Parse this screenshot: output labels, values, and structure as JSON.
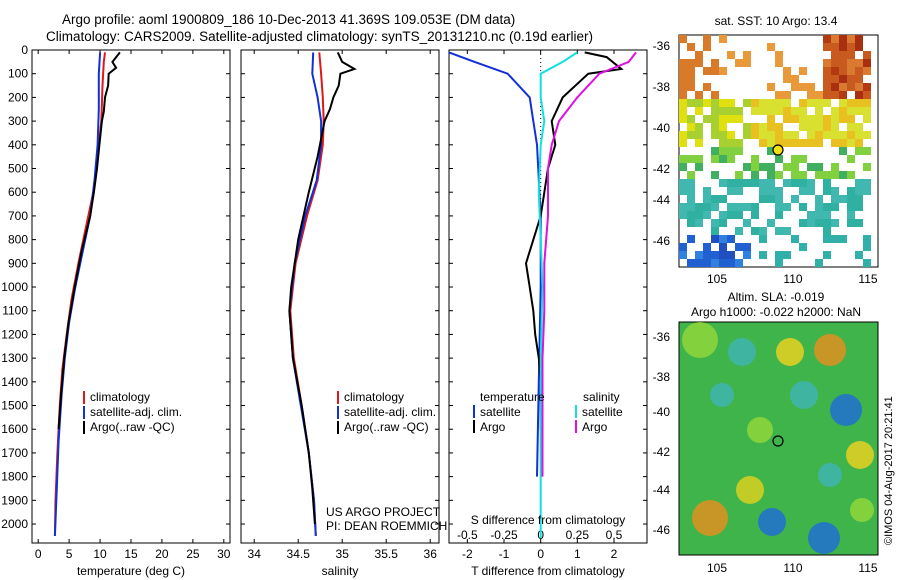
{
  "header": {
    "line1": "Argo profile: aoml 1900809_186 10-Dec-2013 41.369S 109.053E (DM data)",
    "line2": "Climatology: CARS2009. Satellite-adjusted climatology: synTS_20131210.nc (0.19d earlier)"
  },
  "chart_data": [
    {
      "type": "line",
      "name": "temperature-profile",
      "xlabel": "temperature (deg C)",
      "xlim": [
        -1,
        31
      ],
      "ylim": [
        0,
        2080
      ],
      "y_reversed": true,
      "xticks": [
        0,
        5,
        10,
        15,
        20,
        25,
        30
      ],
      "yticks": [
        0,
        100,
        200,
        300,
        400,
        500,
        600,
        700,
        800,
        900,
        1000,
        1100,
        1200,
        1300,
        1400,
        1500,
        1600,
        1700,
        1800,
        1900,
        2000
      ],
      "legend": [
        "climatology",
        "satellite-adj. clim.",
        "Argo(..raw -QC)"
      ],
      "legend_position": "bottom-right",
      "series": [
        {
          "name": "climatology",
          "color": "#e01818",
          "points": [
            [
              10.8,
              10
            ],
            [
              10.6,
              50
            ],
            [
              10.4,
              150
            ],
            [
              10.2,
              300
            ],
            [
              9.6,
              450
            ],
            [
              8.9,
              600
            ],
            [
              7.7,
              750
            ],
            [
              6.5,
              900
            ],
            [
              5.4,
              1050
            ],
            [
              4.6,
              1200
            ],
            [
              3.9,
              1350
            ],
            [
              3.5,
              1500
            ],
            [
              3.1,
              1700
            ],
            [
              2.8,
              1900
            ],
            [
              2.7,
              2050
            ]
          ]
        },
        {
          "name": "satellite-adj. clim.",
          "color": "#1030d8",
          "points": [
            [
              10.0,
              10
            ],
            [
              9.8,
              100
            ],
            [
              9.8,
              250
            ],
            [
              9.6,
              400
            ],
            [
              9.1,
              550
            ],
            [
              8.4,
              700
            ],
            [
              7.2,
              850
            ],
            [
              6.0,
              1000
            ],
            [
              5.0,
              1150
            ],
            [
              4.3,
              1300
            ],
            [
              3.8,
              1450
            ],
            [
              3.3,
              1650
            ],
            [
              3.0,
              1850
            ],
            [
              2.7,
              2050
            ]
          ]
        },
        {
          "name": "Argo",
          "color": "#000000",
          "points": [
            [
              13.2,
              10
            ],
            [
              12.0,
              50
            ],
            [
              12.6,
              75
            ],
            [
              11.4,
              100
            ],
            [
              11.3,
              150
            ],
            [
              10.8,
              200
            ],
            [
              10.6,
              260
            ],
            [
              10.3,
              300
            ],
            [
              9.9,
              400
            ],
            [
              9.5,
              500
            ],
            [
              9.0,
              600
            ],
            [
              8.4,
              700
            ],
            [
              7.0,
              850
            ],
            [
              5.9,
              1000
            ],
            [
              4.9,
              1150
            ],
            [
              4.2,
              1300
            ],
            [
              3.7,
              1450
            ],
            [
              3.3,
              1600
            ]
          ]
        }
      ]
    },
    {
      "type": "line",
      "name": "salinity-profile",
      "xlabel": "salinity",
      "xlim": [
        33.85,
        36.1
      ],
      "ylim": [
        0,
        2080
      ],
      "y_reversed": true,
      "xticks": [
        34,
        34.5,
        35,
        35.5,
        36
      ],
      "legend": [
        "climatology",
        "satellite-adj. clim.",
        "Argo(..raw -QC)"
      ],
      "legend_position": "bottom-right",
      "series": [
        {
          "name": "climatology",
          "color": "#e01818",
          "points": [
            [
              34.74,
              10
            ],
            [
              34.76,
              100
            ],
            [
              34.78,
              200
            ],
            [
              34.79,
              300
            ],
            [
              34.78,
              400
            ],
            [
              34.72,
              550
            ],
            [
              34.6,
              700
            ],
            [
              34.47,
              900
            ],
            [
              34.41,
              1100
            ],
            [
              34.45,
              1300
            ],
            [
              34.54,
              1500
            ],
            [
              34.62,
              1700
            ],
            [
              34.68,
              1900
            ],
            [
              34.7,
              2050
            ]
          ]
        },
        {
          "name": "satellite-adj. clim.",
          "color": "#1030d8",
          "points": [
            [
              34.67,
              10
            ],
            [
              34.66,
              100
            ],
            [
              34.72,
              200
            ],
            [
              34.76,
              300
            ],
            [
              34.76,
              400
            ],
            [
              34.71,
              550
            ],
            [
              34.58,
              700
            ],
            [
              34.46,
              900
            ],
            [
              34.4,
              1100
            ],
            [
              34.44,
              1300
            ],
            [
              34.53,
              1500
            ],
            [
              34.62,
              1700
            ],
            [
              34.68,
              1900
            ],
            [
              34.7,
              2050
            ]
          ]
        },
        {
          "name": "Argo",
          "color": "#000000",
          "points": [
            [
              34.95,
              10
            ],
            [
              35.0,
              50
            ],
            [
              35.14,
              80
            ],
            [
              34.98,
              100
            ],
            [
              34.96,
              150
            ],
            [
              34.9,
              200
            ],
            [
              34.86,
              250
            ],
            [
              34.8,
              300
            ],
            [
              34.72,
              450
            ],
            [
              34.62,
              600
            ],
            [
              34.5,
              800
            ],
            [
              34.42,
              1000
            ],
            [
              34.4,
              1100
            ],
            [
              34.44,
              1300
            ],
            [
              34.54,
              1500
            ],
            [
              34.62,
              1700
            ],
            [
              34.66,
              1850
            ],
            [
              34.69,
              2000
            ]
          ]
        }
      ],
      "annotations": [
        "US ARGO PROJECT",
        "PI: DEAN ROEMMICH"
      ]
    },
    {
      "type": "line",
      "name": "difference-profile",
      "xlabel": "T difference from climatology",
      "xlabel_top": "S difference from climatology",
      "xlim": [
        -2.5,
        2.9
      ],
      "ylim": [
        0,
        2080
      ],
      "y_reversed": true,
      "xticks": [
        -2,
        -1,
        0,
        1,
        2
      ],
      "s_ticks": [
        "-0.5",
        "-0.25",
        "0",
        "0.25",
        "0.5"
      ],
      "s_tick_positions_T": [
        -2,
        -1,
        0,
        1,
        2
      ],
      "legend_temperature_title": "temperature",
      "legend_salinity_title": "salinity",
      "legend": [
        "satellite",
        "Argo",
        "satellite",
        "Argo"
      ],
      "series": [
        {
          "name": "temperature satellite",
          "color": "#1030d8",
          "points": [
            [
              -2.5,
              10
            ],
            [
              -1.8,
              50
            ],
            [
              -0.9,
              100
            ],
            [
              -0.3,
              200
            ],
            [
              -0.2,
              300
            ],
            [
              -0.1,
              400
            ],
            [
              0,
              700
            ],
            [
              0,
              1000
            ],
            [
              -0.05,
              1400
            ],
            [
              -0.1,
              1800
            ]
          ]
        },
        {
          "name": "temperature Argo",
          "color": "#000000",
          "points": [
            [
              1.2,
              10
            ],
            [
              1.8,
              30
            ],
            [
              2.2,
              80
            ],
            [
              1.3,
              100
            ],
            [
              0.6,
              200
            ],
            [
              0.3,
              300
            ],
            [
              0.4,
              400
            ],
            [
              0.2,
              500
            ],
            [
              0,
              700
            ],
            [
              -0.4,
              900
            ],
            [
              -0.3,
              1000
            ],
            [
              -0.2,
              1100
            ],
            [
              -0.15,
              1200
            ],
            [
              -0.05,
              1300
            ],
            [
              0,
              1400
            ],
            [
              0,
              1600
            ]
          ]
        },
        {
          "name": "salinity satellite",
          "color": "#10e0e0",
          "points": [
            [
              1.0,
              10
            ],
            [
              0.6,
              50
            ],
            [
              0,
              100
            ],
            [
              0,
              200
            ],
            [
              0.1,
              300
            ],
            [
              0,
              400
            ],
            [
              -0.05,
              600
            ],
            [
              0,
              800
            ],
            [
              0.05,
              1000
            ],
            [
              0,
              1300
            ],
            [
              0,
              1600
            ],
            [
              0,
              2060
            ]
          ]
        },
        {
          "name": "salinity Argo",
          "color": "#e010e0",
          "points": [
            [
              2.6,
              10
            ],
            [
              2.4,
              50
            ],
            [
              1.6,
              100
            ],
            [
              1.0,
              200
            ],
            [
              0.5,
              300
            ],
            [
              0.3,
              400
            ],
            [
              0.2,
              500
            ],
            [
              0.2,
              700
            ],
            [
              0.1,
              900
            ],
            [
              0.1,
              1100
            ],
            [
              0.05,
              1300
            ],
            [
              0.05,
              1500
            ],
            [
              0.05,
              1800
            ]
          ]
        }
      ]
    }
  ],
  "maps": {
    "sst_title": "sat. SST: 10 Argo: 13.4",
    "sla_title1": "Altim. SLA: -0.019",
    "sla_title2": "Argo h1000: -0.022 h2000: NaN",
    "lat_ticks": [
      "-36",
      "-38",
      "-40",
      "-42",
      "-44",
      "-46"
    ],
    "lon_ticks": [
      "105",
      "110",
      "115"
    ],
    "marker_fill_sst": "#f2e010",
    "timestamp": "©IMOS 04-Aug-2017 20:21:41"
  }
}
